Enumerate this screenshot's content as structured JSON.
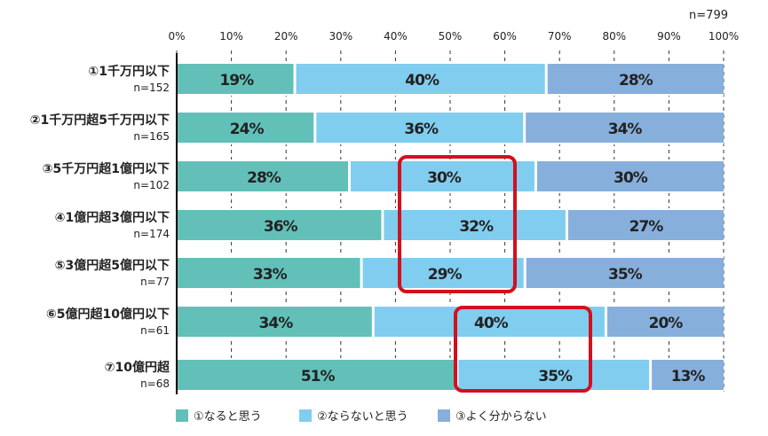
{
  "chart_data": {
    "type": "bar",
    "orientation": "horizontal-stacked-100",
    "n_total": "n=799",
    "xlim": [
      0,
      100
    ],
    "xticks": [
      "0%",
      "10%",
      "20%",
      "30%",
      "40%",
      "50%",
      "60%",
      "70%",
      "80%",
      "90%",
      "100%"
    ],
    "grid": "vertical-dashed",
    "legend_position": "bottom",
    "categories": [
      {
        "label": "①1千万円以下",
        "n": "n=152"
      },
      {
        "label": "②1千万円超5千万円以下",
        "n": "n=165"
      },
      {
        "label": "③5千万円超1億円以下",
        "n": "n=102"
      },
      {
        "label": "④1億円超3億円以下",
        "n": "n=174"
      },
      {
        "label": "⑤3億円超5億円以下",
        "n": "n=77"
      },
      {
        "label": "⑥5億円超10億円以下",
        "n": "n=61"
      },
      {
        "label": "⑦10億円超",
        "n": "n=68"
      }
    ],
    "series": [
      {
        "name": "①なると思う",
        "color": "#62c0b9",
        "values": [
          19,
          24,
          28,
          36,
          33,
          34,
          51
        ]
      },
      {
        "name": "②ならないと思う",
        "color": "#80cdef",
        "values": [
          40,
          36,
          30,
          32,
          29,
          40,
          35
        ]
      },
      {
        "name": "③よく分からない",
        "color": "#87afdc",
        "values": [
          28,
          34,
          30,
          27,
          35,
          20,
          13
        ]
      }
    ],
    "highlight_color": "#d2101f",
    "highlights": [
      {
        "series": 1,
        "rows": [
          2,
          4
        ]
      },
      {
        "series": 1,
        "rows": [
          5,
          6
        ]
      }
    ]
  }
}
